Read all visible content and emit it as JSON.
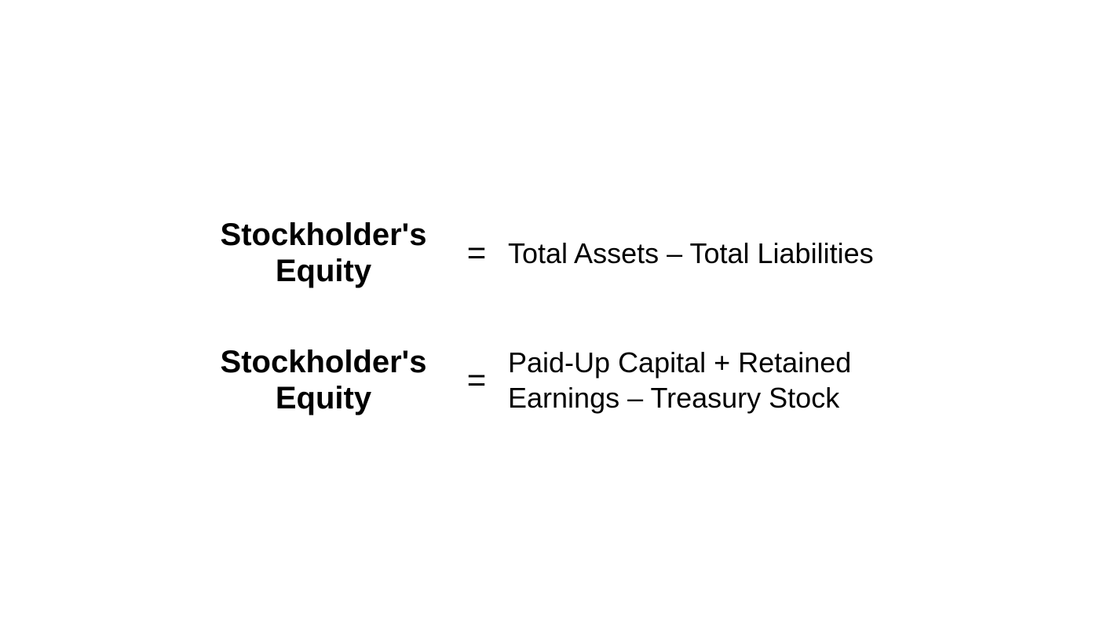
{
  "equations": [
    {
      "lhs_line1": "Stockholder's",
      "lhs_line2": "Equity",
      "equals": "=",
      "rhs": "Total Assets – Total Liabilities"
    },
    {
      "lhs_line1": "Stockholder's",
      "lhs_line2": "Equity",
      "equals": "=",
      "rhs": "Paid-Up Capital + Retained Earnings – Treasury Stock"
    }
  ],
  "colors": {
    "background": "#ffffff",
    "text": "#000000"
  },
  "typography": {
    "lhs_fontsize": 40,
    "lhs_fontweight": 700,
    "rhs_fontsize": 36,
    "rhs_fontweight": 400,
    "equals_fontsize": 42
  }
}
